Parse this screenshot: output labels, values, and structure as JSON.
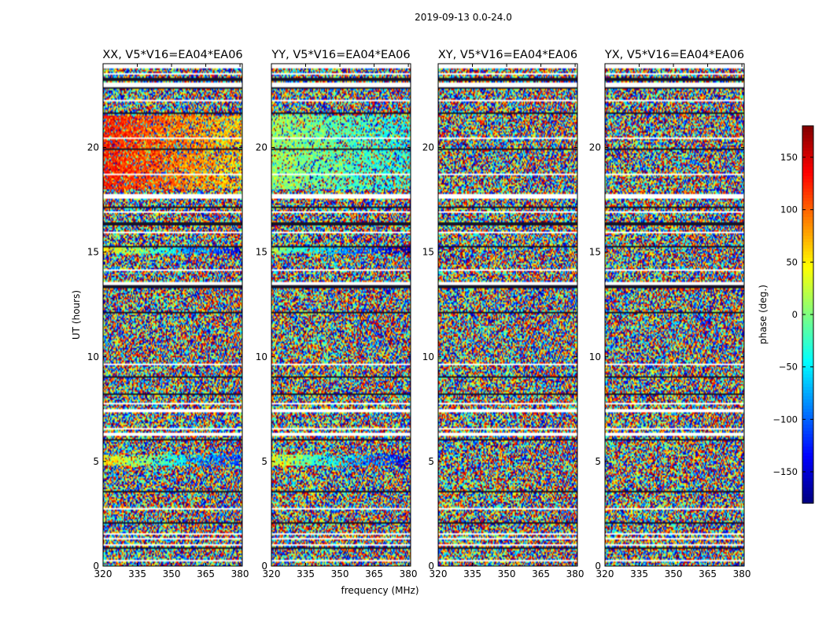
{
  "figure_title": "2019-09-13 0.0-24.0",
  "colorbar": {
    "label": "phase (deg.)",
    "range": [
      -180,
      180
    ],
    "ticks": [
      150,
      100,
      50,
      0,
      -50,
      -100,
      -150
    ],
    "tick_labels": [
      "150",
      "100",
      "50",
      "0",
      "−50",
      "−100",
      "−150"
    ],
    "colormap": [
      "#00007f",
      "#0000ff",
      "#007fff",
      "#00ffff",
      "#7fff7f",
      "#ffff00",
      "#ff7f00",
      "#ff0000",
      "#7f0000"
    ]
  },
  "chart_data": [
    {
      "type": "heatmap",
      "title": "XX, V5*V16=EA04*EA06",
      "xlabel": "",
      "ylabel": "UT (hours)",
      "xlim": [
        320,
        381
      ],
      "ylim": [
        0,
        24
      ],
      "xticks": [
        320,
        335,
        350,
        365,
        380
      ],
      "yticks": [
        0,
        5,
        10,
        15,
        20
      ],
      "value": "phase (deg.)",
      "coherent_bands": [
        {
          "t_start": 4.8,
          "t_end": 5.3,
          "phase_low_freq": 50,
          "phase_high_freq": -120
        },
        {
          "t_start": 14.9,
          "t_end": 15.2,
          "phase_low_freq": 60,
          "phase_high_freq": -150
        },
        {
          "t_start": 18.0,
          "t_end": 21.5,
          "phase_low_freq": 130,
          "phase_high_freq": 60
        }
      ]
    },
    {
      "type": "heatmap",
      "title": "YY, V5*V16=EA04*EA06",
      "xlabel": "frequency (MHz)",
      "ylabel": "",
      "xlim": [
        320,
        381
      ],
      "ylim": [
        0,
        24
      ],
      "xticks": [
        320,
        335,
        350,
        365,
        380
      ],
      "yticks": [
        0,
        5,
        10,
        15,
        20
      ],
      "value": "phase (deg.)",
      "coherent_bands": [
        {
          "t_start": 4.8,
          "t_end": 5.3,
          "phase_low_freq": 40,
          "phase_high_freq": -150
        },
        {
          "t_start": 14.9,
          "t_end": 15.2,
          "phase_low_freq": 10,
          "phase_high_freq": -170
        },
        {
          "t_start": 18.0,
          "t_end": 21.5,
          "phase_low_freq": 10,
          "phase_high_freq": -40
        }
      ]
    },
    {
      "type": "heatmap",
      "title": "XY, V5*V16=EA04*EA06",
      "xlabel": "",
      "ylabel": "",
      "xlim": [
        320,
        381
      ],
      "ylim": [
        0,
        24
      ],
      "xticks": [
        320,
        335,
        350,
        365,
        380
      ],
      "yticks": [
        0,
        5,
        10,
        15,
        20
      ],
      "value": "phase (deg.)",
      "coherent_bands": []
    },
    {
      "type": "heatmap",
      "title": "YX, V5*V16=EA04*EA06",
      "xlabel": "",
      "ylabel": "",
      "xlim": [
        320,
        381
      ],
      "ylim": [
        0,
        24
      ],
      "xticks": [
        320,
        335,
        350,
        365,
        380
      ],
      "yticks": [
        0,
        5,
        10,
        15,
        20
      ],
      "value": "phase (deg.)",
      "coherent_bands": []
    }
  ]
}
